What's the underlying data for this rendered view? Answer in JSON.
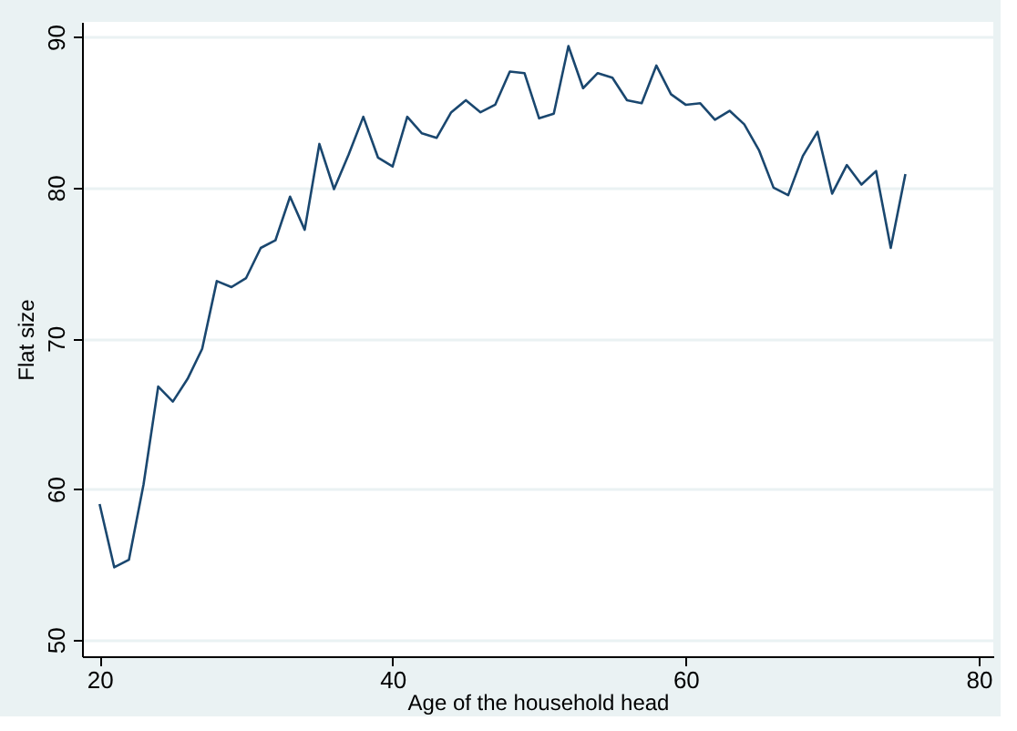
{
  "chart_data": {
    "type": "line",
    "xlabel": "Age of the household head",
    "ylabel": "Flat size",
    "x": [
      20,
      21,
      22,
      23,
      24,
      25,
      26,
      27,
      28,
      29,
      30,
      31,
      32,
      33,
      34,
      35,
      36,
      37,
      38,
      39,
      40,
      41,
      42,
      43,
      44,
      45,
      46,
      47,
      48,
      49,
      50,
      51,
      52,
      53,
      54,
      55,
      56,
      57,
      58,
      59,
      60,
      61,
      62,
      63,
      64,
      65,
      66,
      67,
      68,
      69,
      70,
      71,
      72,
      73,
      74,
      75
    ],
    "series": [
      {
        "color": "#1a476f",
        "values": [
          59.0,
          54.8,
          55.3,
          60.3,
          66.8,
          65.8,
          67.3,
          69.3,
          73.8,
          73.4,
          74.0,
          76.0,
          76.5,
          79.4,
          77.2,
          82.9,
          79.9,
          82.2,
          84.7,
          82.0,
          81.4,
          84.7,
          83.6,
          83.3,
          85.0,
          85.8,
          85.0,
          85.5,
          87.7,
          87.6,
          84.6,
          84.9,
          89.4,
          86.6,
          87.6,
          87.3,
          85.8,
          85.6,
          88.1,
          86.2,
          85.5,
          85.6,
          84.5,
          85.1,
          84.2,
          82.5,
          80.0,
          79.5,
          82.1,
          83.7,
          79.6,
          81.5,
          80.2,
          81.1,
          76.0,
          80.9
        ]
      }
    ],
    "xlim": [
      18.8,
      81
    ],
    "ylim": [
      48.9,
      91
    ],
    "xticks": [
      20,
      40,
      60,
      80
    ],
    "yticks": [
      50,
      60,
      70,
      80,
      90
    ],
    "grid": "y",
    "legend": false,
    "marker": "none",
    "line_style": "solid"
  }
}
